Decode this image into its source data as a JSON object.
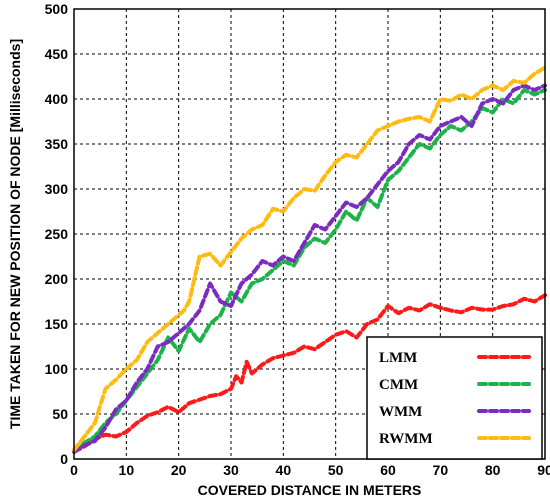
{
  "chart_data": {
    "type": "line",
    "xlabel": "COVERED DISTANCE IN METERS",
    "ylabel": "TIME TAKEN FOR NEW POSITION OF NODE [Milliseconds]",
    "xlim": [
      0,
      90
    ],
    "ylim": [
      0,
      500
    ],
    "xticks": [
      0,
      10,
      20,
      30,
      40,
      50,
      60,
      70,
      80,
      90
    ],
    "yticks": [
      0,
      50,
      100,
      150,
      200,
      250,
      300,
      350,
      400,
      450,
      500
    ],
    "grid": true,
    "legend_position": "bottom-right",
    "series": [
      {
        "name": "LMM",
        "color": "#ff1a1a",
        "x": [
          0,
          2,
          4,
          6,
          8,
          10,
          12,
          14,
          16,
          18,
          20,
          22,
          24,
          26,
          28,
          30,
          31,
          32,
          33,
          34,
          36,
          38,
          40,
          42,
          44,
          46,
          48,
          50,
          52,
          54,
          56,
          58,
          60,
          62,
          64,
          66,
          68,
          70,
          72,
          74,
          76,
          78,
          80,
          82,
          84,
          86,
          88,
          90
        ],
        "y": [
          8,
          14,
          22,
          27,
          25,
          30,
          40,
          48,
          52,
          58,
          52,
          62,
          66,
          70,
          72,
          78,
          92,
          85,
          108,
          95,
          105,
          112,
          115,
          118,
          125,
          122,
          130,
          138,
          142,
          135,
          150,
          155,
          170,
          162,
          168,
          165,
          172,
          168,
          165,
          163,
          168,
          166,
          166,
          170,
          172,
          178,
          175,
          182
        ]
      },
      {
        "name": "CMM",
        "color": "#1db34a",
        "x": [
          0,
          2,
          4,
          6,
          8,
          10,
          12,
          14,
          16,
          18,
          20,
          22,
          24,
          26,
          28,
          30,
          32,
          34,
          36,
          38,
          40,
          42,
          44,
          46,
          48,
          50,
          52,
          54,
          56,
          58,
          60,
          62,
          64,
          66,
          68,
          70,
          72,
          74,
          76,
          78,
          80,
          82,
          84,
          86,
          88,
          90
        ],
        "y": [
          10,
          18,
          25,
          40,
          50,
          65,
          80,
          95,
          110,
          135,
          120,
          145,
          130,
          150,
          160,
          185,
          175,
          195,
          200,
          210,
          220,
          215,
          235,
          245,
          240,
          255,
          275,
          265,
          290,
          280,
          310,
          320,
          335,
          350,
          345,
          360,
          370,
          365,
          375,
          390,
          385,
          400,
          395,
          410,
          405,
          410
        ]
      },
      {
        "name": "WMM",
        "color": "#7b2bbf",
        "x": [
          0,
          2,
          4,
          6,
          8,
          10,
          12,
          14,
          16,
          18,
          20,
          22,
          24,
          26,
          28,
          30,
          32,
          34,
          36,
          38,
          40,
          42,
          44,
          46,
          48,
          50,
          52,
          54,
          56,
          58,
          60,
          62,
          64,
          66,
          68,
          70,
          72,
          74,
          76,
          78,
          80,
          82,
          84,
          86,
          88,
          90
        ],
        "y": [
          8,
          15,
          20,
          35,
          55,
          65,
          85,
          100,
          125,
          130,
          140,
          150,
          165,
          195,
          175,
          170,
          195,
          205,
          220,
          215,
          225,
          220,
          240,
          260,
          255,
          270,
          285,
          280,
          290,
          305,
          320,
          330,
          350,
          360,
          355,
          370,
          375,
          380,
          370,
          395,
          400,
          395,
          410,
          415,
          410,
          415
        ]
      },
      {
        "name": "RWMM",
        "color": "#ffbb11",
        "x": [
          0,
          2,
          4,
          6,
          8,
          10,
          12,
          14,
          16,
          18,
          20,
          21,
          22,
          24,
          26,
          28,
          30,
          32,
          34,
          36,
          38,
          40,
          42,
          44,
          46,
          48,
          50,
          52,
          54,
          56,
          58,
          60,
          62,
          64,
          66,
          68,
          70,
          72,
          74,
          76,
          78,
          80,
          82,
          84,
          86,
          88,
          90
        ],
        "y": [
          10,
          25,
          40,
          78,
          88,
          100,
          110,
          130,
          140,
          150,
          160,
          165,
          175,
          225,
          228,
          215,
          230,
          245,
          255,
          260,
          278,
          275,
          290,
          300,
          298,
          315,
          330,
          338,
          335,
          350,
          365,
          370,
          375,
          378,
          380,
          375,
          400,
          398,
          405,
          400,
          410,
          415,
          410,
          420,
          418,
          428,
          435
        ]
      }
    ]
  }
}
